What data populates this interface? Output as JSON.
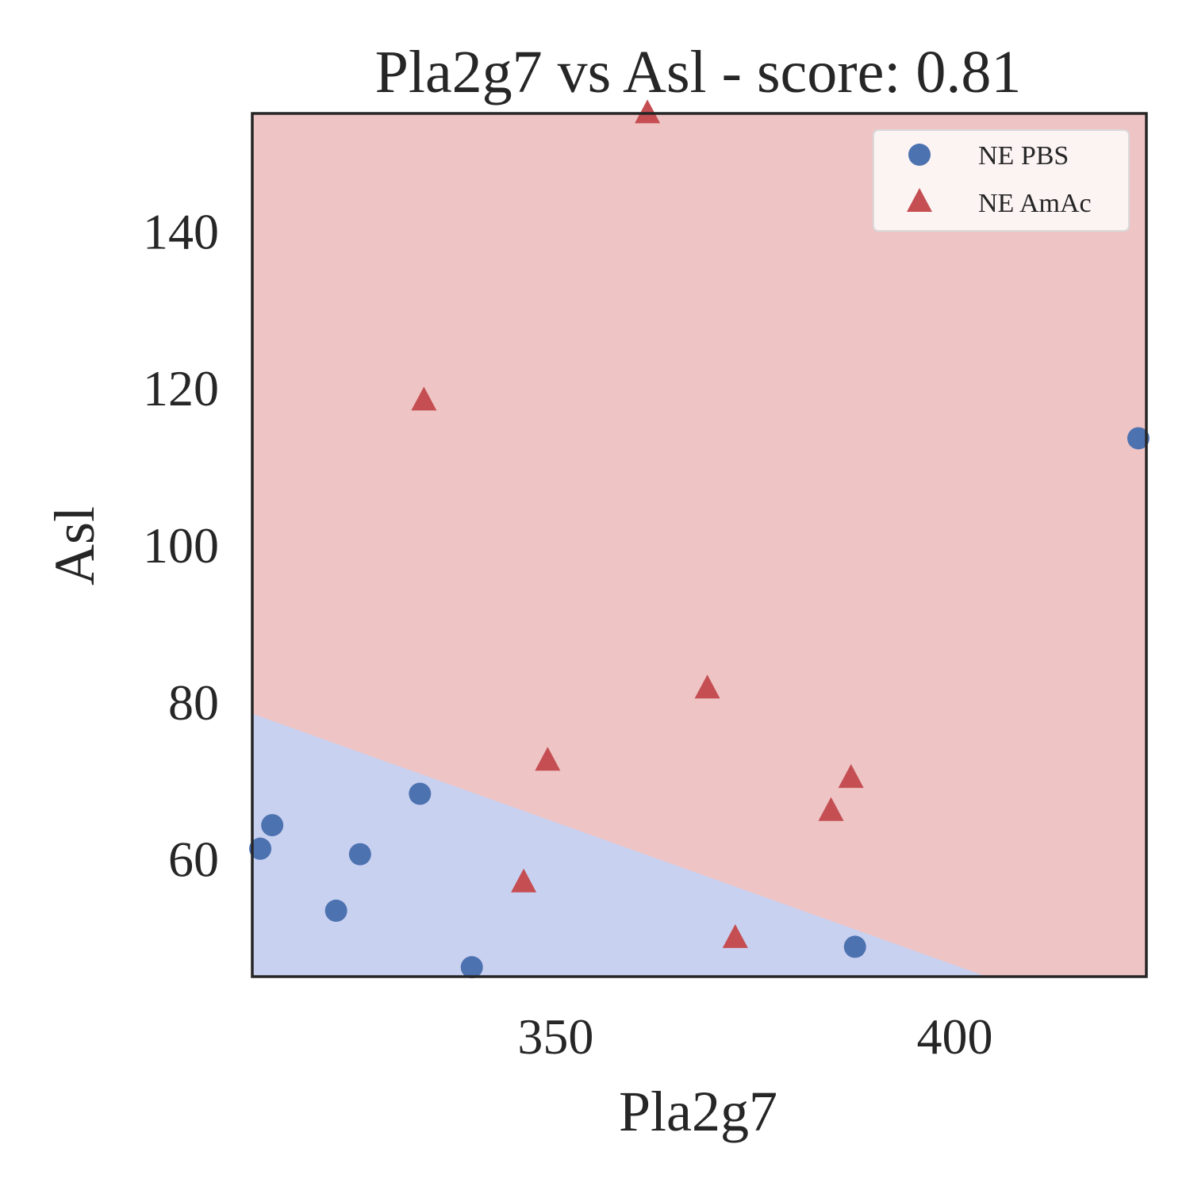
{
  "chart_data": {
    "type": "scatter",
    "title": "Pla2g7 vs Asl - score: 0.81",
    "xlabel": "Pla2g7",
    "ylabel": "Asl",
    "xlim": [
      312,
      424
    ],
    "ylim": [
      45,
      155
    ],
    "x_ticks": [
      350,
      400
    ],
    "x_tick_labels": [
      "350",
      "400"
    ],
    "y_ticks": [
      60,
      80,
      100,
      120,
      140
    ],
    "y_tick_labels": [
      "60",
      "80",
      "100",
      "120",
      "140"
    ],
    "grid": false,
    "legend_position": "top-right",
    "decision_boundary": {
      "points": [
        [
          312,
          78.5
        ],
        [
          404,
          45
        ]
      ],
      "below_region": "NE PBS",
      "above_region": "NE AmAc"
    },
    "series": [
      {
        "name": "NE PBS",
        "marker": "circle",
        "color": "#4c72b0",
        "region_color": "#c9d1f1",
        "points": [
          [
            313,
            61.3
          ],
          [
            314.5,
            64.3
          ],
          [
            322.5,
            53.4
          ],
          [
            325.5,
            60.6
          ],
          [
            333,
            68.3
          ],
          [
            339.5,
            46.2
          ],
          [
            387.5,
            48.8
          ],
          [
            423,
            113.6
          ]
        ]
      },
      {
        "name": "NE AmAc",
        "marker": "triangle",
        "color": "#c44e52",
        "region_color": "#eec4c4",
        "points": [
          [
            333.5,
            118.3
          ],
          [
            346,
            56.9
          ],
          [
            349,
            72.4
          ],
          [
            361.5,
            154.9
          ],
          [
            369,
            81.6
          ],
          [
            372.5,
            49.8
          ],
          [
            384.5,
            66.0
          ],
          [
            387,
            70.2
          ]
        ]
      }
    ]
  }
}
